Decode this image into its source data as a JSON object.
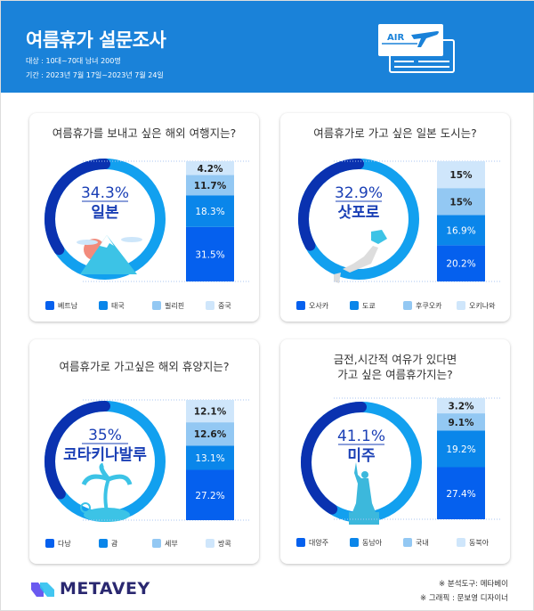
{
  "header": {
    "title": "여름휴가 설문조사",
    "target": "대상 : 10대~70대 남녀 200명",
    "period": "기간 : 2023년 7월 17일~2023년 7월 24일",
    "ticket_label": "AIR",
    "ticket_icon": "airplane-ticket-icon"
  },
  "colors": {
    "header": "#1a82d9",
    "dark_arc": "#0a32b0",
    "light_arc": "#12a0ef",
    "seg": [
      "#0560ee",
      "#0a86ea",
      "#93c8f3",
      "#cfe6fb"
    ],
    "accent_text": "#1a3fb5"
  },
  "cards": [
    {
      "title": "여름휴가를 보내고 싶은 해외 여행지는?",
      "top_value": "34.3%",
      "top_label": "일본",
      "top_pct": 34.3,
      "illustration": "mountain-icon",
      "segments": [
        {
          "label": "베트남",
          "value": 31.5,
          "text": "31.5%"
        },
        {
          "label": "태국",
          "value": 18.3,
          "text": "18.3%"
        },
        {
          "label": "필리핀",
          "value": 11.7,
          "text": "11.7%"
        },
        {
          "label": "중국",
          "value": 4.2,
          "text": "4.2%"
        }
      ]
    },
    {
      "title": "여름휴가로 가고 싶은 일본 도시는?",
      "top_value": "32.9%",
      "top_label": "삿포로",
      "top_pct": 32.9,
      "illustration": "japan-map-icon",
      "segments": [
        {
          "label": "오사카",
          "value": 20.2,
          "text": "20.2%"
        },
        {
          "label": "도쿄",
          "value": 16.9,
          "text": "16.9%"
        },
        {
          "label": "후쿠오카",
          "value": 15,
          "text": "15%"
        },
        {
          "label": "오키나와",
          "value": 15,
          "text": "15%"
        }
      ]
    },
    {
      "title": "여름휴가로 가고싶은 해외 휴양지는?",
      "top_value": "35%",
      "top_label": "코타키나발루",
      "top_pct": 35,
      "illustration": "palm-island-icon",
      "segments": [
        {
          "label": "다낭",
          "value": 27.2,
          "text": "27.2%"
        },
        {
          "label": "괌",
          "value": 13.1,
          "text": "13.1%"
        },
        {
          "label": "세부",
          "value": 12.6,
          "text": "12.6%"
        },
        {
          "label": "방콕",
          "value": 12.1,
          "text": "12.1%"
        }
      ]
    },
    {
      "title": "금전,시간적 여유가 있다면\n가고 싶은 여름휴가지는?",
      "top_value": "41.1%",
      "top_label": "미주",
      "top_pct": 41.1,
      "illustration": "statue-of-liberty-icon",
      "segments": [
        {
          "label": "대양주",
          "value": 27.4,
          "text": "27.4%"
        },
        {
          "label": "동남아",
          "value": 19.2,
          "text": "19.2%"
        },
        {
          "label": "국내",
          "value": 9.1,
          "text": "9.1%"
        },
        {
          "label": "동북아",
          "value": 3.2,
          "text": "3.2%"
        }
      ]
    }
  ],
  "footer": {
    "logo": "METAVEY",
    "tool": "※ 분석도구: 메타베이",
    "graphic": "※ 그래픽 : 문보영 디자이너"
  }
}
